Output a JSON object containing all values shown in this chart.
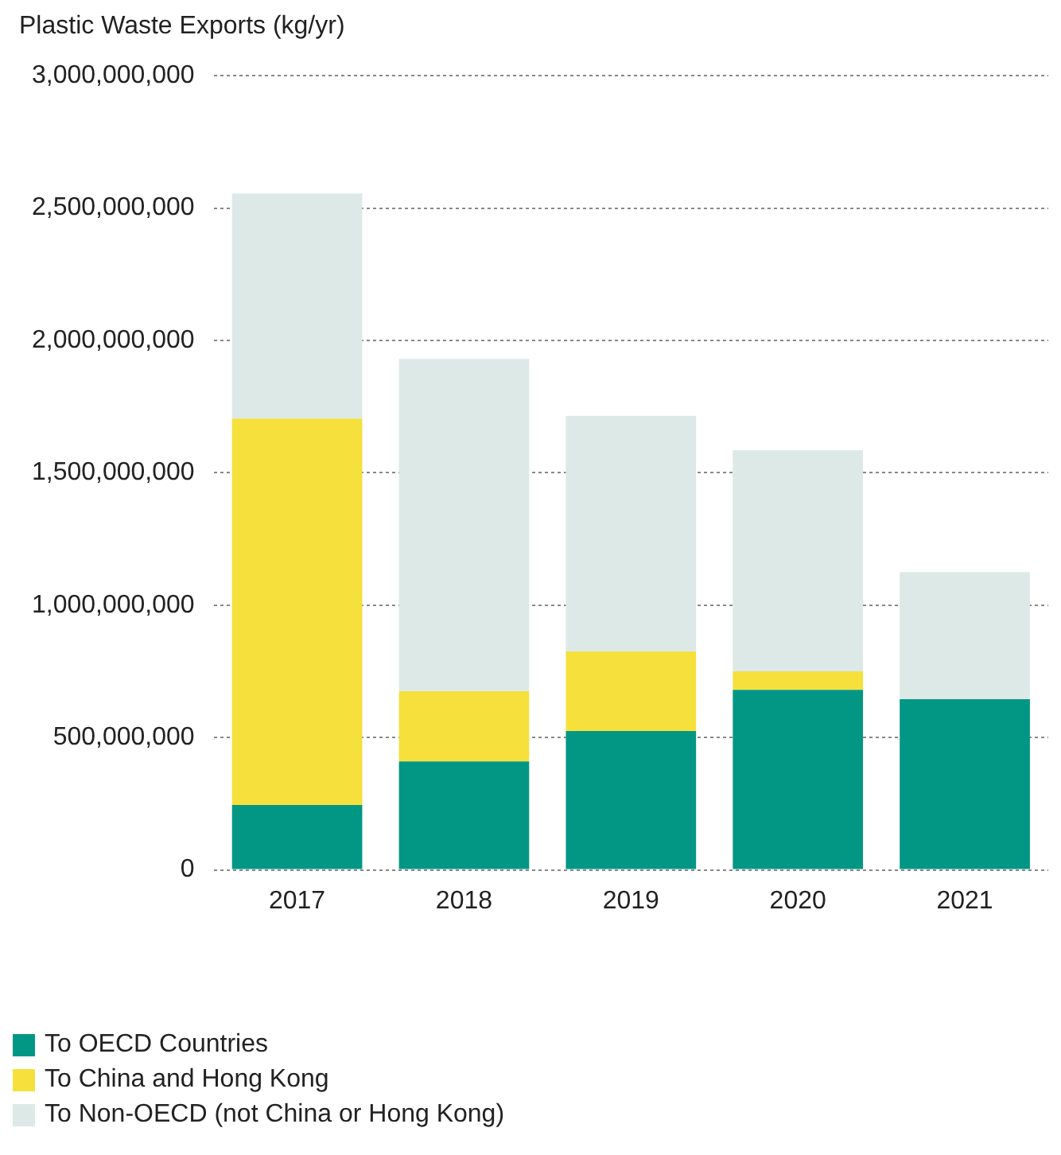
{
  "chart_data": {
    "type": "bar",
    "ylabel": "Plastic Waste Exports (kg/yr)",
    "categories": [
      "2017",
      "2018",
      "2019",
      "2020",
      "2021"
    ],
    "stacked": true,
    "grid": "y",
    "legend": "bottom left",
    "series": [
      {
        "name": "To OECD Countries",
        "color": "#019784",
        "values": [
          245000000,
          410000000,
          525000000,
          680000000,
          645000000
        ]
      },
      {
        "name": "To China and Hong Kong",
        "color": "#f5e03c",
        "values": [
          1460000000,
          265000000,
          300000000,
          70000000,
          0
        ]
      },
      {
        "name": "To Non-OECD (not China or Hong Kong)",
        "color": "#dde9e6",
        "values": [
          850000000,
          1255000000,
          890000000,
          835000000,
          480000000
        ]
      }
    ],
    "ylim": [
      0,
      3000000000
    ],
    "yticks": [
      {
        "value": 0,
        "label": "0"
      },
      {
        "value": 500000000,
        "label": "500,000,000"
      },
      {
        "value": 1000000000,
        "label": "1,000,000,000"
      },
      {
        "value": 1500000000,
        "label": "1,500,000,000"
      },
      {
        "value": 2000000000,
        "label": "2,000,000,000"
      },
      {
        "value": 2500000000,
        "label": "2,500,000,000"
      },
      {
        "value": 3000000000,
        "label": "3,000,000,000"
      }
    ]
  }
}
